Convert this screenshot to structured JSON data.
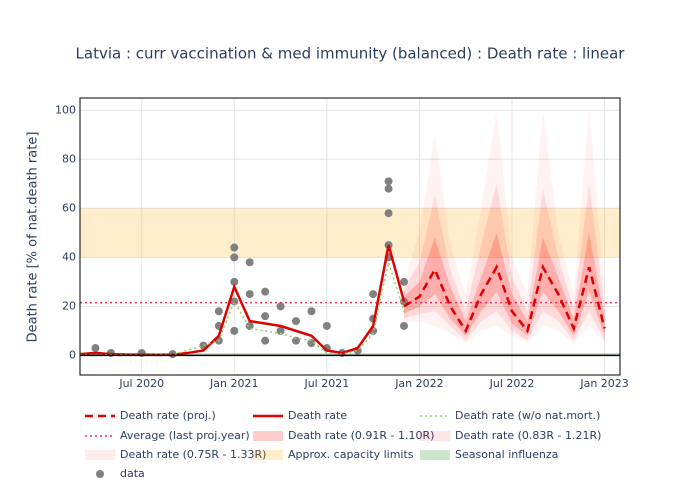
{
  "chart_data": {
    "type": "line",
    "title": "Latvia : curr vaccination & med immunity (balanced) : Death rate : linear",
    "y_label": "Death rate [% of nat.death rate]",
    "xlim": [
      "2020-03",
      "2023-02"
    ],
    "xticks": [
      {
        "value": "2020-07",
        "label": "Jul 2020"
      },
      {
        "value": "2021-01",
        "label": "Jan 2021"
      },
      {
        "value": "2021-07",
        "label": "Jul 2021"
      },
      {
        "value": "2022-01",
        "label": "Jan 2022"
      },
      {
        "value": "2022-07",
        "label": "Jul 2022"
      },
      {
        "value": "2023-01",
        "label": "Jan 2023"
      }
    ],
    "ylim": [
      -8,
      105
    ],
    "yticks": [
      0,
      20,
      40,
      60,
      80,
      100
    ],
    "grid": true,
    "zeroline": true,
    "series": [
      {
        "name": "Death rate (proj.)",
        "kind": "line",
        "dash": "dash",
        "color": "#e00000",
        "x": [
          "2021-12",
          "2022-01",
          "2022-02",
          "2022-03",
          "2022-04",
          "2022-05",
          "2022-06",
          "2022-07",
          "2022-08",
          "2022-09",
          "2022-10",
          "2022-11",
          "2022-12",
          "2023-01"
        ],
        "values": [
          20,
          24,
          35,
          20,
          10,
          25,
          36,
          18,
          10,
          36,
          25,
          11,
          36,
          11
        ]
      },
      {
        "name": "Death rate",
        "kind": "line",
        "dash": "solid",
        "color": "#e00000",
        "x": [
          "2020-03",
          "2020-04",
          "2020-05",
          "2020-06",
          "2020-07",
          "2020-08",
          "2020-09",
          "2020-10",
          "2020-11",
          "2020-12",
          "2021-01",
          "2021-02",
          "2021-03",
          "2021-04",
          "2021-05",
          "2021-06",
          "2021-07",
          "2021-08",
          "2021-09",
          "2021-10",
          "2021-11",
          "2021-12"
        ],
        "values": [
          0.5,
          1,
          0.5,
          0.3,
          0.3,
          0.2,
          0.3,
          1,
          2,
          8,
          28,
          14,
          13,
          12,
          10,
          8,
          2,
          1,
          3,
          12,
          45,
          22
        ]
      },
      {
        "name": "Death rate (w/o nat.mort.)",
        "kind": "line",
        "dash": "dot",
        "color": "#90d060",
        "x": [
          "2020-03",
          "2020-06",
          "2020-09",
          "2020-12",
          "2021-01",
          "2021-02",
          "2021-03",
          "2021-04",
          "2021-05",
          "2021-06",
          "2021-07",
          "2021-08",
          "2021-09",
          "2021-10",
          "2021-11",
          "2021-12",
          "2022-01"
        ],
        "values": [
          0.3,
          0.2,
          0.2,
          6,
          22,
          11,
          10,
          9,
          7,
          6,
          1,
          0.5,
          2,
          9,
          38,
          18,
          20
        ]
      },
      {
        "name": "Average (last proj.year)",
        "kind": "hline",
        "dash": "dot",
        "color": "#e8365a",
        "value": 21.5
      },
      {
        "name": "Death rate (0.91R - 1.10R)",
        "kind": "band",
        "color": "#ff0000",
        "opacity": 0.2,
        "x": [
          "2021-12",
          "2022-01",
          "2022-02",
          "2022-03",
          "2022-04",
          "2022-05",
          "2022-06",
          "2022-07",
          "2022-08",
          "2022-09",
          "2022-10",
          "2022-11",
          "2022-12",
          "2023-01"
        ],
        "low": [
          17,
          20,
          25,
          15,
          8,
          18,
          26,
          13,
          8,
          26,
          18,
          8,
          26,
          8
        ],
        "high": [
          24,
          30,
          48,
          28,
          14,
          32,
          50,
          25,
          14,
          48,
          32,
          15,
          50,
          15
        ]
      },
      {
        "name": "Death rate (0.83R - 1.21R)",
        "kind": "band",
        "color": "#ff0000",
        "opacity": 0.1,
        "x": [
          "2021-12",
          "2022-01",
          "2022-02",
          "2022-03",
          "2022-04",
          "2022-05",
          "2022-06",
          "2022-07",
          "2022-08",
          "2022-09",
          "2022-10",
          "2022-11",
          "2022-12",
          "2023-01"
        ],
        "low": [
          15,
          17,
          18,
          12,
          6,
          14,
          18,
          10,
          6,
          18,
          14,
          6,
          18,
          6
        ],
        "high": [
          27,
          38,
          65,
          35,
          18,
          45,
          70,
          32,
          18,
          68,
          40,
          19,
          70,
          20
        ]
      },
      {
        "name": "Death rate (0.75R - 1.33R)",
        "kind": "band",
        "color": "#ff0000",
        "opacity": 0.05,
        "x": [
          "2021-12",
          "2022-01",
          "2022-02",
          "2022-03",
          "2022-04",
          "2022-05",
          "2022-06",
          "2022-07",
          "2022-08",
          "2022-09",
          "2022-10",
          "2022-11",
          "2022-12",
          "2023-01"
        ],
        "low": [
          13,
          14,
          12,
          9,
          5,
          10,
          12,
          8,
          5,
          12,
          10,
          5,
          12,
          5
        ],
        "high": [
          30,
          50,
          90,
          45,
          25,
          60,
          100,
          40,
          25,
          100,
          50,
          25,
          100,
          28
        ]
      },
      {
        "name": "Approx. capacity limits",
        "kind": "hband",
        "color": "#ffa500",
        "opacity": 0.2,
        "low": 40,
        "high": 60
      },
      {
        "name": "Seasonal influenza",
        "kind": "hband",
        "color": "#008000",
        "opacity": 0.2,
        "low": 0,
        "high": 1
      },
      {
        "name": "data",
        "kind": "scatter",
        "color": "#808080",
        "x": [
          "2020-04",
          "2020-05",
          "2020-07",
          "2020-09",
          "2020-11",
          "2020-12",
          "2020-12",
          "2020-12",
          "2021-01",
          "2021-01",
          "2021-01",
          "2021-01",
          "2021-01",
          "2021-02",
          "2021-02",
          "2021-02",
          "2021-03",
          "2021-03",
          "2021-03",
          "2021-04",
          "2021-04",
          "2021-05",
          "2021-05",
          "2021-06",
          "2021-06",
          "2021-07",
          "2021-07",
          "2021-08",
          "2021-09",
          "2021-10",
          "2021-10",
          "2021-10",
          "2021-11",
          "2021-11",
          "2021-11",
          "2021-11",
          "2021-11",
          "2021-12",
          "2021-12",
          "2021-12"
        ],
        "values": [
          3,
          1,
          1,
          0.5,
          4,
          12,
          6,
          18,
          40,
          44,
          30,
          22,
          10,
          38,
          25,
          12,
          26,
          16,
          6,
          20,
          10,
          14,
          6,
          18,
          5,
          12,
          3,
          1,
          2,
          15,
          25,
          10,
          58,
          71,
          68,
          45,
          40,
          30,
          12,
          22
        ]
      }
    ]
  }
}
